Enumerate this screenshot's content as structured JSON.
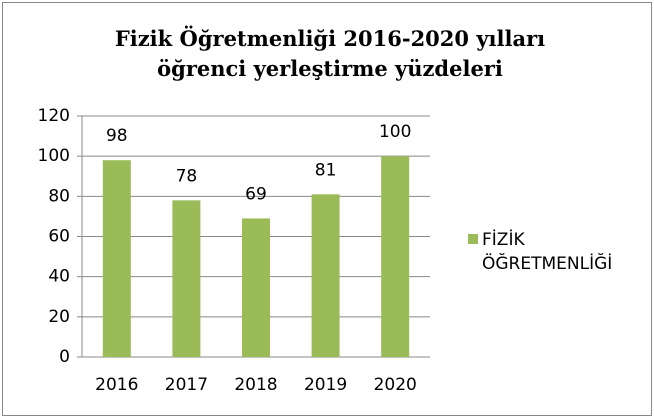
{
  "chart_data": {
    "type": "bar",
    "title": "Fizik  Öğretmenliği 2016-2020 yılları\nöğrenci yerleştirme yüzdeleri",
    "categories": [
      "2016",
      "2017",
      "2018",
      "2019",
      "2020"
    ],
    "series": [
      {
        "name": "FİZİK ÖĞRETMENLİĞİ",
        "color": "#9bbb59",
        "values": [
          98,
          78,
          69,
          81,
          100
        ]
      }
    ],
    "ylim": [
      0,
      120
    ],
    "yticks": [
      0,
      20,
      40,
      60,
      80,
      100,
      120
    ],
    "grid": true,
    "legend": "right"
  }
}
